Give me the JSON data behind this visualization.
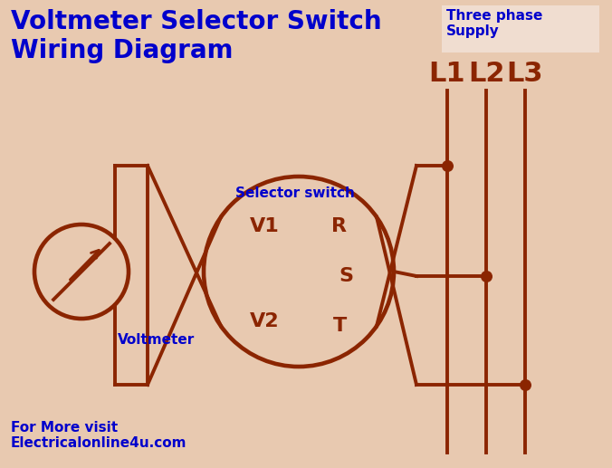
{
  "bg_color": "#e8c9b0",
  "line_color": "#8B2500",
  "blue_color": "#0000CC",
  "title": "Voltmeter Selector Switch\nWiring Diagram",
  "title_fontsize": 20,
  "subtitle": "Three phase\nSupply",
  "footer": "For More visit\nElectricalonline4u.com",
  "selector_label": "Selector switch",
  "voltmeter_label": "Voltmeter",
  "L1": "L1",
  "L2": "L2",
  "L3": "L3",
  "V1": "V1",
  "V2": "V2",
  "R": "R",
  "S": "S",
  "T": "T",
  "lw": 2.8
}
